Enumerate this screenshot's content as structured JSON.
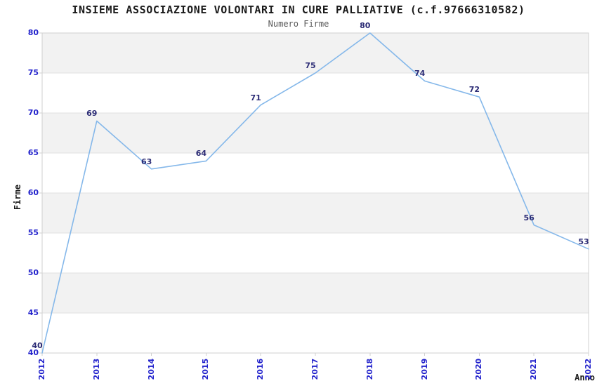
{
  "chart_data": {
    "type": "line",
    "title": "INSIEME ASSOCIAZIONE VOLONTARI IN CURE PALLIATIVE (c.f.97666310582)",
    "subtitle": "Numero Firme",
    "xlabel": "Anno",
    "ylabel": "Firme",
    "categories": [
      "2012",
      "2013",
      "2014",
      "2015",
      "2016",
      "2017",
      "2018",
      "2019",
      "2020",
      "2021",
      "2022"
    ],
    "values": [
      40,
      69,
      63,
      64,
      71,
      75,
      80,
      74,
      72,
      56,
      53
    ],
    "ylim": [
      40,
      80
    ],
    "ytick_step": 5,
    "grid": "horizontal",
    "legend": "none",
    "banded_background": true,
    "data_labels_visible": true,
    "colors": {
      "line": "#85b8ea",
      "axis_tick_label": "#2222cc",
      "data_label": "#2b2b75",
      "band": "#f2f2f2",
      "grid_line": "#e0e0e0",
      "plot_border": "#d0d0d0",
      "title_text": "#1a1a1a",
      "subtitle_text": "#595959",
      "background": "#ffffff"
    }
  }
}
